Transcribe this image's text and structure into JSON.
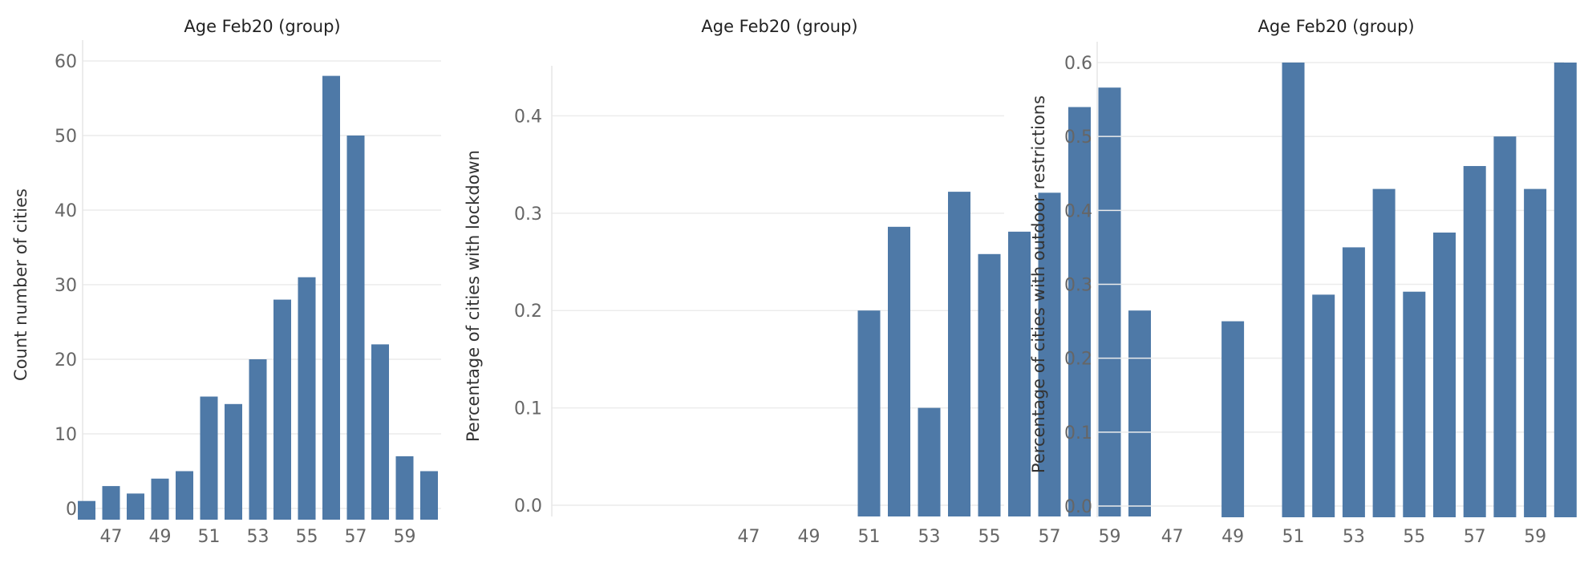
{
  "colors": {
    "bar": "#4e79a7"
  },
  "chart_data": [
    {
      "type": "bar",
      "title": "Age Feb20 (group)",
      "xlabel": "",
      "ylabel": "Count number of cities",
      "categories": [
        "46",
        "47",
        "48",
        "49",
        "50",
        "51",
        "52",
        "53",
        "54",
        "55",
        "56",
        "57",
        "58",
        "59",
        "60"
      ],
      "x_tick_labels": [
        "47",
        "49",
        "51",
        "53",
        "55",
        "57",
        "59"
      ],
      "values": [
        1,
        3,
        2,
        4,
        5,
        15,
        14,
        20,
        28,
        31,
        58,
        50,
        22,
        7,
        5
      ],
      "yticks": [
        0,
        10,
        20,
        30,
        40,
        50,
        60
      ],
      "ylim": [
        0,
        60
      ],
      "grid": true
    },
    {
      "type": "bar",
      "title": "Age Feb20 (group)",
      "xlabel": "",
      "ylabel": "Percentage of cities with lockdown",
      "categories": [
        "46",
        "47",
        "48",
        "49",
        "50",
        "51",
        "52",
        "53",
        "54",
        "55",
        "56",
        "57",
        "58",
        "59",
        "60"
      ],
      "x_tick_labels": [
        "47",
        "49",
        "51",
        "53",
        "55",
        "57",
        "59"
      ],
      "values": [
        null,
        null,
        null,
        null,
        null,
        0.2,
        0.286,
        0.1,
        0.322,
        0.258,
        0.281,
        0.321,
        0.409,
        0.429,
        0.2
      ],
      "yticks": [
        "0.0",
        "0.1",
        "0.2",
        "0.3",
        "0.4"
      ],
      "ylim": [
        0,
        0.43
      ],
      "grid": true
    },
    {
      "type": "bar",
      "title": "Age Feb20 (group)",
      "xlabel": "",
      "ylabel": "Percentage of cities with outdoor restrictions",
      "categories": [
        "46",
        "47",
        "48",
        "49",
        "50",
        "51",
        "52",
        "53",
        "54",
        "55",
        "56",
        "57",
        "58",
        "59",
        "60"
      ],
      "x_tick_labels": [
        "47",
        "49",
        "51",
        "53",
        "55",
        "57",
        "59"
      ],
      "values": [
        null,
        null,
        null,
        0.25,
        null,
        0.6,
        0.286,
        0.35,
        0.429,
        0.29,
        0.37,
        0.46,
        0.5,
        0.429,
        0.6
      ],
      "yticks": [
        "0.0",
        "0.1",
        "0.2",
        "0.3",
        "0.4",
        "0.5",
        "0.6"
      ],
      "ylim": [
        0,
        0.6
      ],
      "grid": true
    }
  ]
}
